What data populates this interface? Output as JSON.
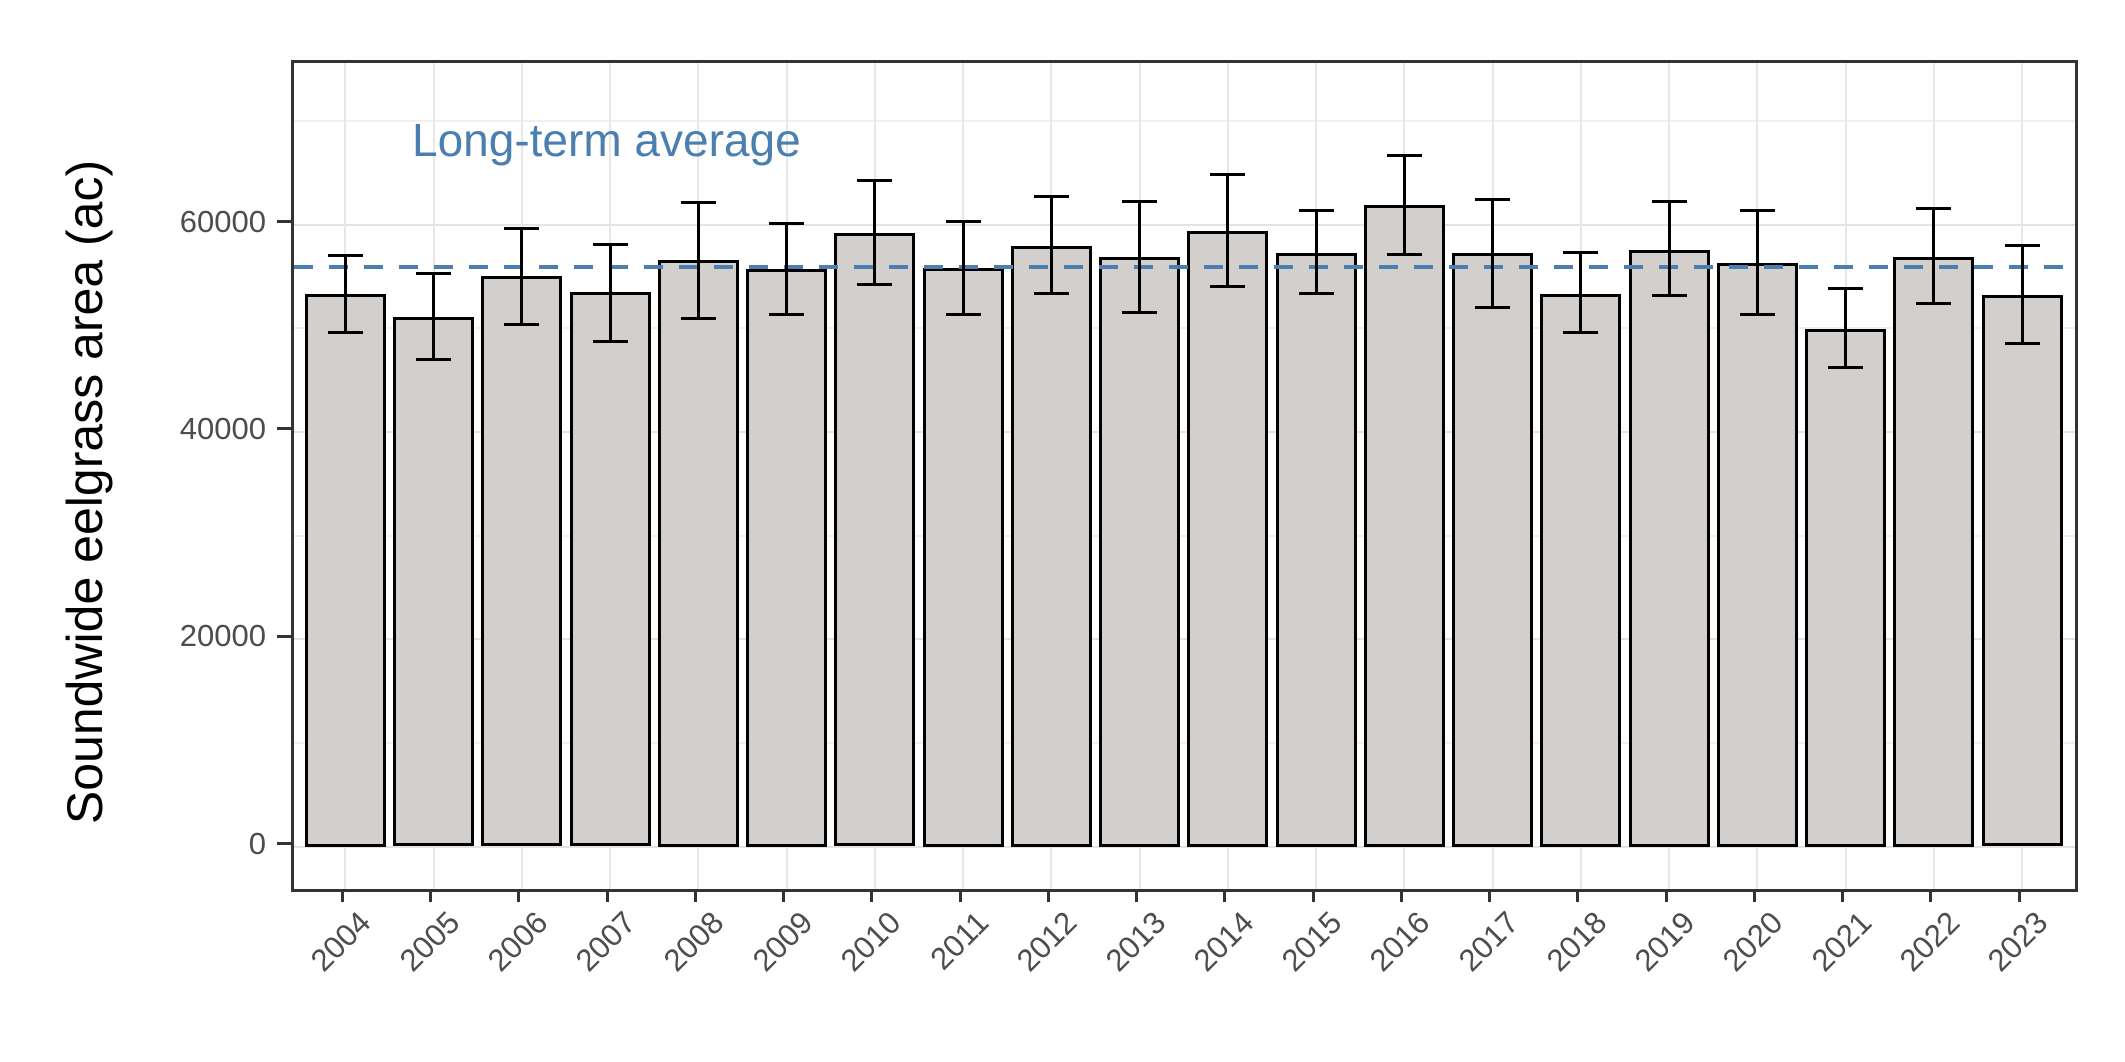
{
  "chart_data": {
    "type": "bar",
    "title": "",
    "xlabel": "",
    "ylabel": "Soundwide eelgrass area (ac)",
    "categories": [
      "2004",
      "2005",
      "2006",
      "2007",
      "2008",
      "2009",
      "2010",
      "2011",
      "2012",
      "2013",
      "2014",
      "2015",
      "2016",
      "2017",
      "2018",
      "2019",
      "2020",
      "2021",
      "2022",
      "2023"
    ],
    "series": [
      {
        "name": "Soundwide eelgrass area (ac)",
        "values": [
          53300,
          51100,
          55000,
          53500,
          56600,
          55700,
          59200,
          55800,
          57900,
          56900,
          59400,
          57300,
          61900,
          57300,
          53300,
          57600,
          56300,
          49900,
          56900,
          53200
        ],
        "error_low": [
          49500,
          46900,
          50300,
          48700,
          50900,
          51300,
          54200,
          51300,
          53300,
          51500,
          54000,
          53300,
          57100,
          52000,
          49500,
          53100,
          51300,
          46200,
          52300,
          48500
        ],
        "error_high": [
          57100,
          55300,
          59700,
          58100,
          62200,
          60200,
          64300,
          60400,
          62800,
          62300,
          64900,
          61400,
          66700,
          62500,
          57400,
          62300,
          61400,
          53900,
          61600,
          58000
        ]
      }
    ],
    "reference_line": {
      "label": "Long-term average",
      "value": 55900,
      "style": "dashed",
      "color": "#4A7FB0"
    },
    "y_ticks": [
      0,
      20000,
      40000,
      60000
    ],
    "y_minor_ticks": [
      10000,
      30000,
      50000,
      70000
    ],
    "ylim": [
      -4100,
      75600
    ],
    "grid": "major-and-minor-horizontal, major-vertical-per-category",
    "legend_position": "none",
    "bar_fill": "#D3CFCC",
    "bar_stroke": "#000000"
  },
  "colors": {
    "background": "#FFFFFF",
    "panel_border": "#333333",
    "grid_major": "#E3E3E3",
    "grid_minor": "#F0F0F0",
    "grid_vertical": "#E7E7E7",
    "axis_text": "#4D4D4D",
    "axis_title": "#000000",
    "accent_blue": "#4A7FB0"
  }
}
